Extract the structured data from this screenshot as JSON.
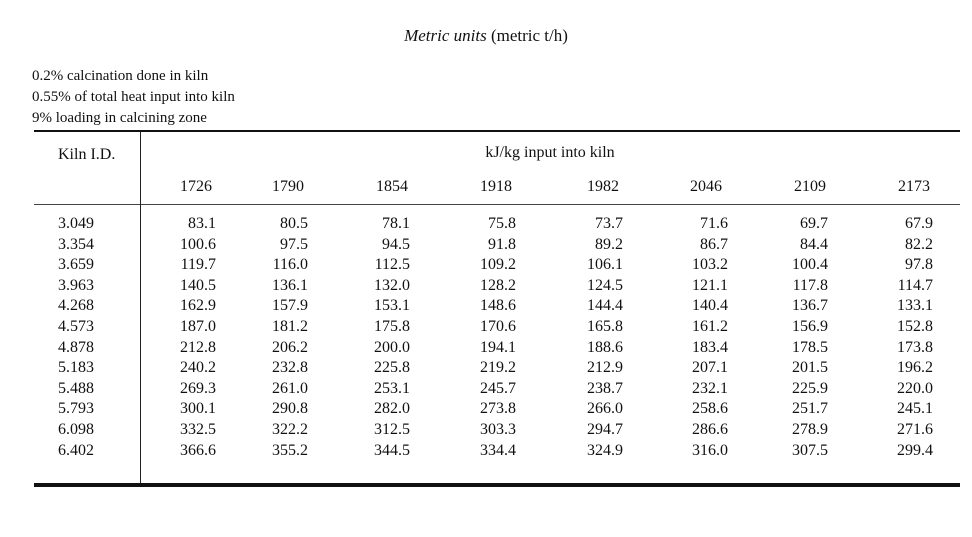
{
  "title": {
    "italic": "Metric units",
    "rest": "(metric t/h)"
  },
  "notes": [
    "0.2% calcination done in kiln",
    "0.55% of total heat input into kiln",
    "9% loading in calcining zone"
  ],
  "table": {
    "row_header": "Kiln I.D.",
    "group_header": "kJ/kg input into kiln",
    "columns": [
      "1726",
      "1790",
      "1854",
      "1918",
      "1982",
      "2046",
      "2109",
      "2173"
    ],
    "rows": [
      {
        "id": "3.049",
        "values": [
          "83.1",
          "80.5",
          "78.1",
          "75.8",
          "73.7",
          "71.6",
          "69.7",
          "67.9"
        ]
      },
      {
        "id": "3.354",
        "values": [
          "100.6",
          "97.5",
          "94.5",
          "91.8",
          "89.2",
          "86.7",
          "84.4",
          "82.2"
        ]
      },
      {
        "id": "3.659",
        "values": [
          "119.7",
          "116.0",
          "112.5",
          "109.2",
          "106.1",
          "103.2",
          "100.4",
          "97.8"
        ]
      },
      {
        "id": "3.963",
        "values": [
          "140.5",
          "136.1",
          "132.0",
          "128.2",
          "124.5",
          "121.1",
          "117.8",
          "114.7"
        ]
      },
      {
        "id": "4.268",
        "values": [
          "162.9",
          "157.9",
          "153.1",
          "148.6",
          "144.4",
          "140.4",
          "136.7",
          "133.1"
        ]
      },
      {
        "id": "4.573",
        "values": [
          "187.0",
          "181.2",
          "175.8",
          "170.6",
          "165.8",
          "161.2",
          "156.9",
          "152.8"
        ]
      },
      {
        "id": "4.878",
        "values": [
          "212.8",
          "206.2",
          "200.0",
          "194.1",
          "188.6",
          "183.4",
          "178.5",
          "173.8"
        ]
      },
      {
        "id": "5.183",
        "values": [
          "240.2",
          "232.8",
          "225.8",
          "219.2",
          "212.9",
          "207.1",
          "201.5",
          "196.2"
        ]
      },
      {
        "id": "5.488",
        "values": [
          "269.3",
          "261.0",
          "253.1",
          "245.7",
          "238.7",
          "232.1",
          "225.9",
          "220.0"
        ]
      },
      {
        "id": "5.793",
        "values": [
          "300.1",
          "290.8",
          "282.0",
          "273.8",
          "266.0",
          "258.6",
          "251.7",
          "245.1"
        ]
      },
      {
        "id": "6.098",
        "values": [
          "332.5",
          "322.2",
          "312.5",
          "303.3",
          "294.7",
          "286.6",
          "278.9",
          "271.6"
        ]
      },
      {
        "id": "6.402",
        "values": [
          "366.6",
          "355.2",
          "344.5",
          "334.4",
          "324.9",
          "316.0",
          "307.5",
          "299.4"
        ]
      }
    ]
  }
}
